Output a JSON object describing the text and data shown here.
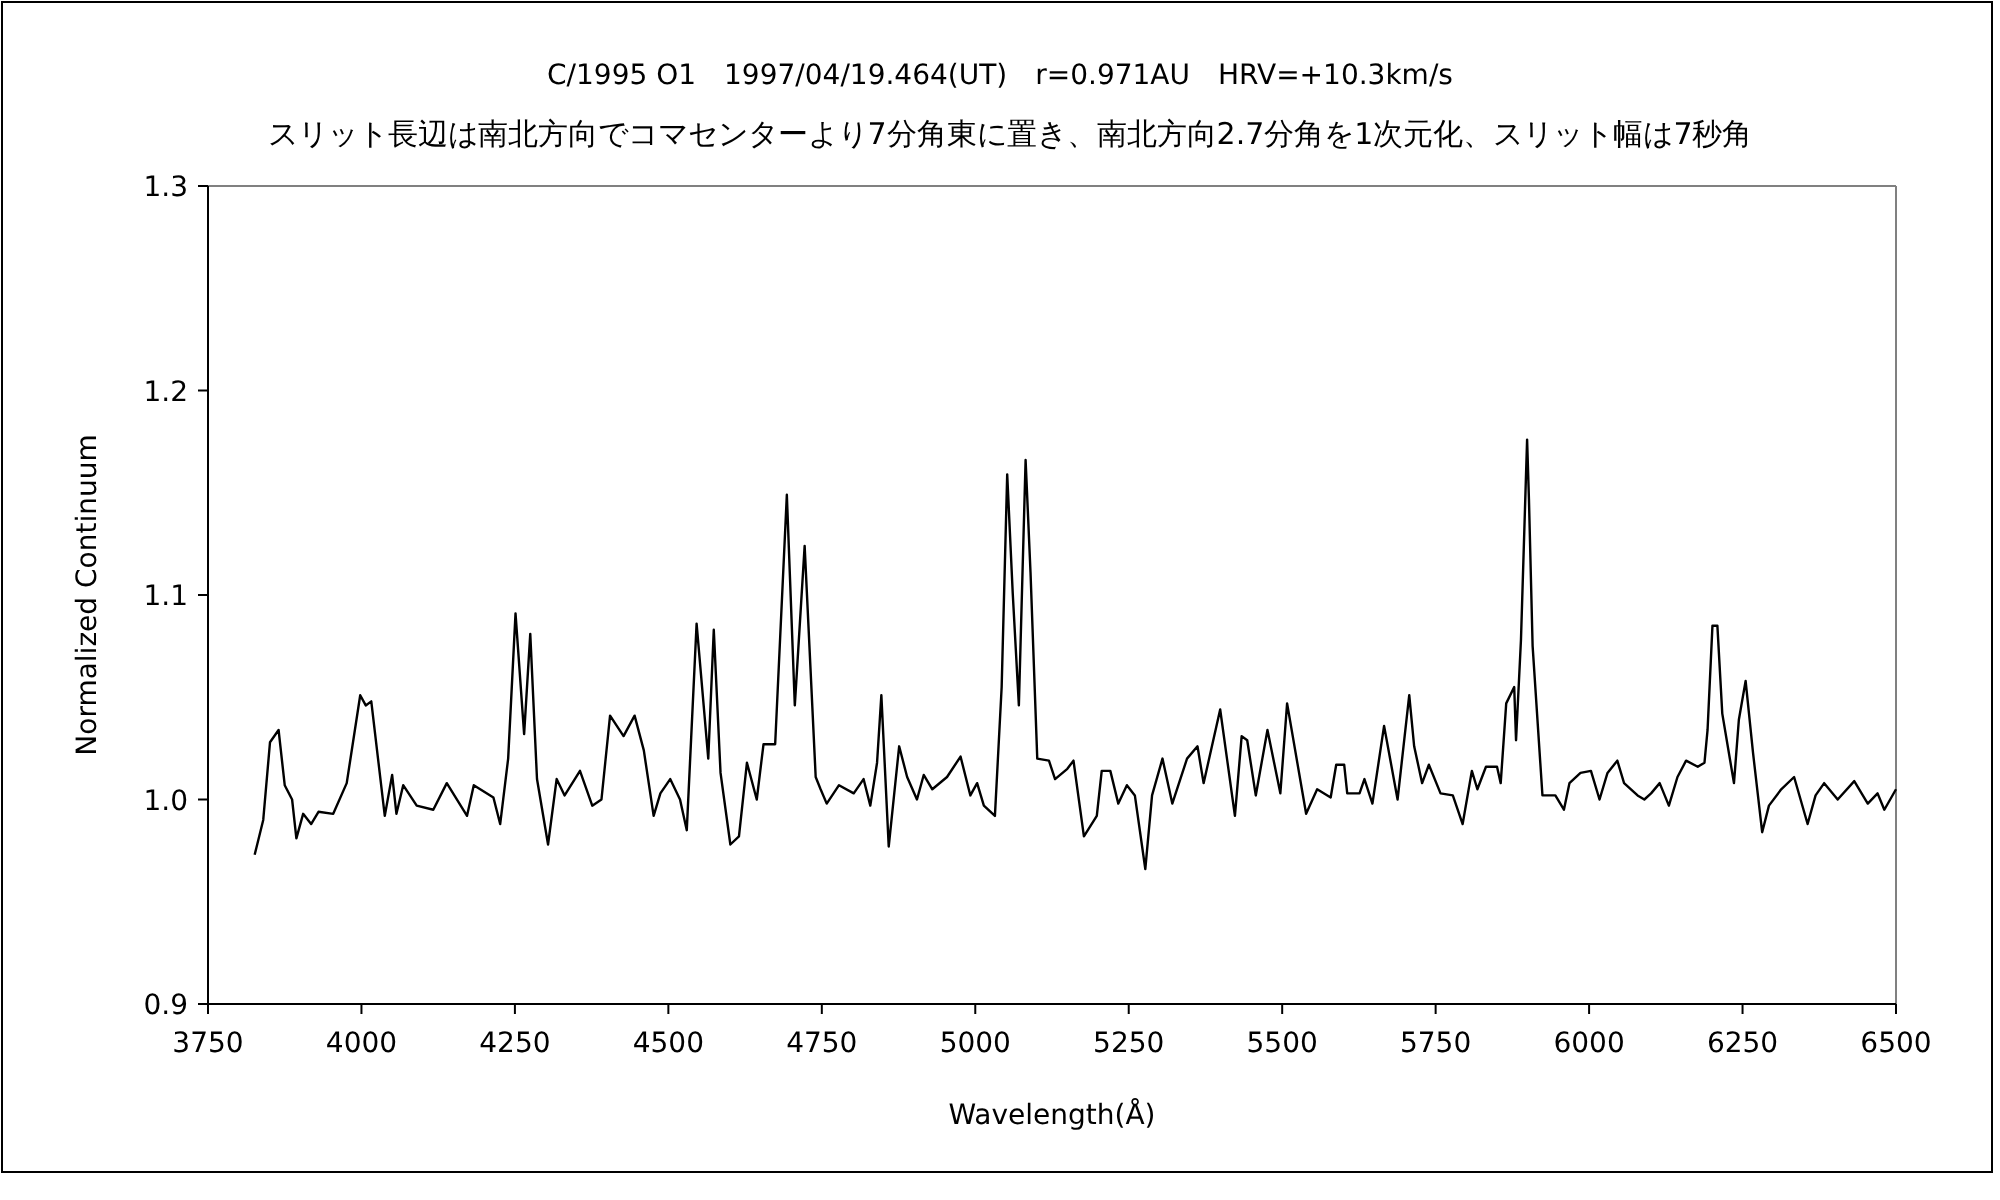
{
  "chart_data": {
    "type": "line",
    "title": "C/1995 O1　1997/04/19.464(UT)　r=0.971AU　HRV=+10.3km/s",
    "subtitle": "スリット長辺は南北方向でコマセンターより7分角東に置き、南北方向2.7分角を1次元化、スリット幅は7秒角",
    "xlabel": "Wavelength(Å)",
    "ylabel": "Normalized Continuum",
    "xlim": [
      3750,
      6500
    ],
    "xticks": [
      3750,
      4000,
      4250,
      4500,
      4750,
      5000,
      5250,
      5500,
      5750,
      6000,
      6250,
      6500
    ],
    "ylim": [
      0.9,
      1.3
    ],
    "yticks": [
      {
        "value": 0.9,
        "label": "0.9"
      },
      {
        "value": 1.0,
        "label": "1.0"
      },
      {
        "value": 1.1,
        "label": "1.1"
      },
      {
        "value": 1.2,
        "label": "1.2"
      },
      {
        "value": 1.3,
        "label": "1.3"
      }
    ],
    "series": [
      {
        "color": "#000000",
        "x": [
          3826,
          3840,
          3851,
          3865,
          3875,
          3887,
          3894,
          3905,
          3918,
          3930,
          3954,
          3976,
          3998,
          4007,
          4016,
          4027,
          4038,
          4050,
          4057,
          4068,
          4090,
          4117,
          4139,
          4172,
          4183,
          4215,
          4226,
          4239,
          4251,
          4265,
          4275,
          4286,
          4304,
          4318,
          4331,
          4356,
          4376,
          4391,
          4405,
          4427,
          4445,
          4460,
          4476,
          4487,
          4503,
          4519,
          4530,
          4546,
          4565,
          4574,
          4585,
          4601,
          4615,
          4628,
          4644,
          4655,
          4674,
          4693,
          4706,
          4722,
          4740,
          4748,
          4758,
          4778,
          4802,
          4818,
          4829,
          4840,
          4847,
          4859,
          4876,
          4889,
          4905,
          4916,
          4930,
          4954,
          4976,
          4992,
          5003,
          5014,
          5032,
          5043,
          5052,
          5061,
          5071,
          5082,
          5090,
          5101,
          5120,
          5130,
          5150,
          5160,
          5177,
          5198,
          5206,
          5220,
          5233,
          5247,
          5260,
          5277,
          5288,
          5305,
          5321,
          5345,
          5362,
          5372,
          5399,
          5423,
          5434,
          5443,
          5457,
          5476,
          5497,
          5508,
          5539,
          5557,
          5579,
          5588,
          5601,
          5606,
          5626,
          5634,
          5647,
          5666,
          5688,
          5707,
          5715,
          5728,
          5739,
          5758,
          5778,
          5794,
          5809,
          5818,
          5832,
          5850,
          5856,
          5865,
          5878,
          5881,
          5889,
          5899,
          5902,
          5908,
          5924,
          5945,
          5959,
          5968,
          5986,
          6003,
          6017,
          6030,
          6046,
          6057,
          6079,
          6090,
          6101,
          6115,
          6130,
          6144,
          6158,
          6177,
          6188,
          6193,
          6201,
          6209,
          6217,
          6236,
          6244,
          6255,
          6267,
          6282,
          6293,
          6313,
          6334,
          6356,
          6369,
          6383,
          6405,
          6432,
          6454,
          6470,
          6481,
          6500
        ],
        "values": [
          0.973,
          0.99,
          1.028,
          1.034,
          1.007,
          1.0,
          0.981,
          0.993,
          0.988,
          0.994,
          0.993,
          1.008,
          1.051,
          1.046,
          1.048,
          1.02,
          0.992,
          1.012,
          0.993,
          1.007,
          0.997,
          0.995,
          1.008,
          0.992,
          1.007,
          1.001,
          0.988,
          1.02,
          1.091,
          1.032,
          1.081,
          1.01,
          0.978,
          1.01,
          1.002,
          1.014,
          0.997,
          1.0,
          1.041,
          1.031,
          1.041,
          1.024,
          0.992,
          1.003,
          1.01,
          1.0,
          0.985,
          1.086,
          1.02,
          1.083,
          1.013,
          0.978,
          0.982,
          1.018,
          1.0,
          1.027,
          1.027,
          1.149,
          1.046,
          1.124,
          1.011,
          1.005,
          0.998,
          1.007,
          1.003,
          1.01,
          0.997,
          1.018,
          1.051,
          0.977,
          1.026,
          1.011,
          1.0,
          1.012,
          1.005,
          1.011,
          1.021,
          1.002,
          1.008,
          0.997,
          0.992,
          1.055,
          1.159,
          1.101,
          1.046,
          1.166,
          1.111,
          1.02,
          1.019,
          1.01,
          1.015,
          1.019,
          0.982,
          0.992,
          1.014,
          1.014,
          0.998,
          1.007,
          1.002,
          0.966,
          1.002,
          1.02,
          0.998,
          1.02,
          1.026,
          1.008,
          1.044,
          0.992,
          1.031,
          1.029,
          1.002,
          1.034,
          1.003,
          1.047,
          0.993,
          1.005,
          1.001,
          1.017,
          1.017,
          1.003,
          1.003,
          1.01,
          0.998,
          1.036,
          1.0,
          1.051,
          1.026,
          1.008,
          1.017,
          1.003,
          1.002,
          0.988,
          1.014,
          1.005,
          1.016,
          1.016,
          1.008,
          1.047,
          1.055,
          1.029,
          1.078,
          1.176,
          1.147,
          1.075,
          1.002,
          1.002,
          0.995,
          1.008,
          1.013,
          1.014,
          1.0,
          1.013,
          1.019,
          1.008,
          1.002,
          1.0,
          1.003,
          1.008,
          0.997,
          1.011,
          1.019,
          1.016,
          1.018,
          1.034,
          1.085,
          1.085,
          1.042,
          1.008,
          1.039,
          1.058,
          1.023,
          0.984,
          0.997,
          1.005,
          1.011,
          0.988,
          1.002,
          1.008,
          1.0,
          1.009,
          0.998,
          1.003,
          0.995,
          1.005
        ]
      }
    ]
  }
}
